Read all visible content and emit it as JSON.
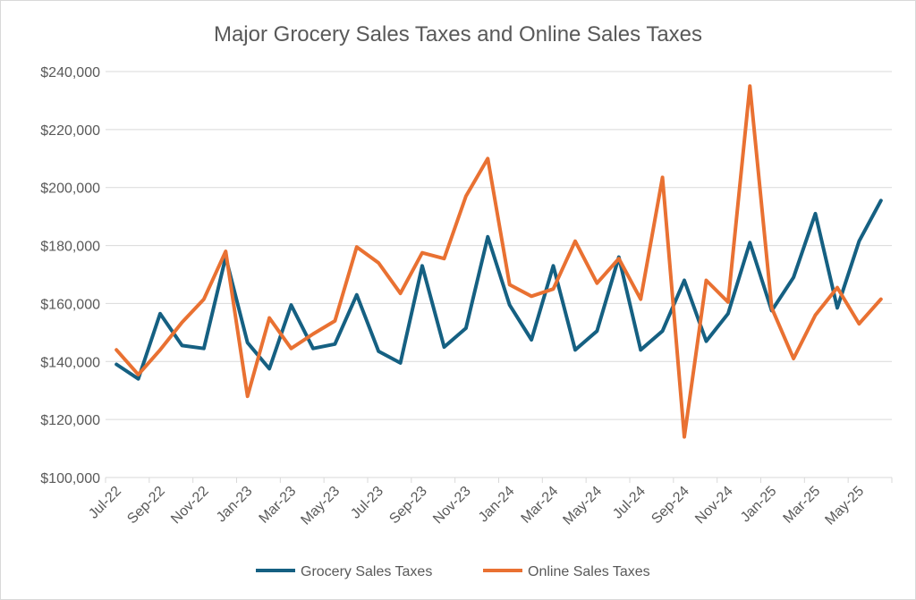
{
  "chart_data": {
    "type": "line",
    "title": "Major Grocery Sales Taxes and Online Sales Taxes",
    "xlabel": "",
    "ylabel": "",
    "ylim": [
      100000,
      240000
    ],
    "y_ticks": [
      "$100,000",
      "$120,000",
      "$140,000",
      "$160,000",
      "$180,000",
      "$200,000",
      "$220,000",
      "$240,000"
    ],
    "x_tick_labels": [
      "Jul-22",
      "Sep-22",
      "Nov-22",
      "Jan-23",
      "Mar-23",
      "May-23",
      "Jul-23",
      "Sep-23",
      "Nov-23",
      "Jan-24",
      "Mar-24",
      "May-24",
      "Jul-24",
      "Sep-24",
      "Nov-24",
      "Jan-25",
      "Mar-25",
      "May-25"
    ],
    "grid": true,
    "legend_position": "bottom",
    "categories": [
      "Jul-22",
      "Aug-22",
      "Sep-22",
      "Oct-22",
      "Nov-22",
      "Dec-22",
      "Jan-23",
      "Feb-23",
      "Mar-23",
      "Apr-23",
      "May-23",
      "Jun-23",
      "Jul-23",
      "Aug-23",
      "Sep-23",
      "Oct-23",
      "Nov-23",
      "Dec-23",
      "Jan-24",
      "Feb-24",
      "Mar-24",
      "Apr-24",
      "May-24",
      "Jun-24",
      "Jul-24",
      "Aug-24",
      "Sep-24",
      "Oct-24",
      "Nov-24",
      "Dec-24",
      "Jan-25",
      "Feb-25",
      "Mar-25",
      "Apr-25",
      "May-25",
      "Jun-25"
    ],
    "series": [
      {
        "name": "Grocery Sales Taxes",
        "color": "#156082",
        "values": [
          139000,
          134000,
          156500,
          145500,
          144500,
          176000,
          146500,
          137500,
          159500,
          144500,
          146000,
          163000,
          143500,
          139500,
          173000,
          145000,
          151500,
          183000,
          159500,
          147500,
          173000,
          144000,
          150500,
          176000,
          144000,
          150500,
          168000,
          147000,
          156500,
          181000,
          157500,
          169000,
          191000,
          158500,
          181500,
          195500
        ]
      },
      {
        "name": "Online Sales Taxes",
        "color": "#E97132",
        "values": [
          144000,
          135500,
          144000,
          153500,
          161500,
          178000,
          128000,
          155000,
          144500,
          149500,
          154000,
          179500,
          174000,
          163500,
          177500,
          175500,
          197000,
          210000,
          166500,
          162500,
          165000,
          181500,
          167000,
          175500,
          161500,
          203500,
          114000,
          168000,
          160500,
          235000,
          158500,
          141000,
          156000,
          165500,
          153000,
          161500
        ]
      }
    ]
  }
}
